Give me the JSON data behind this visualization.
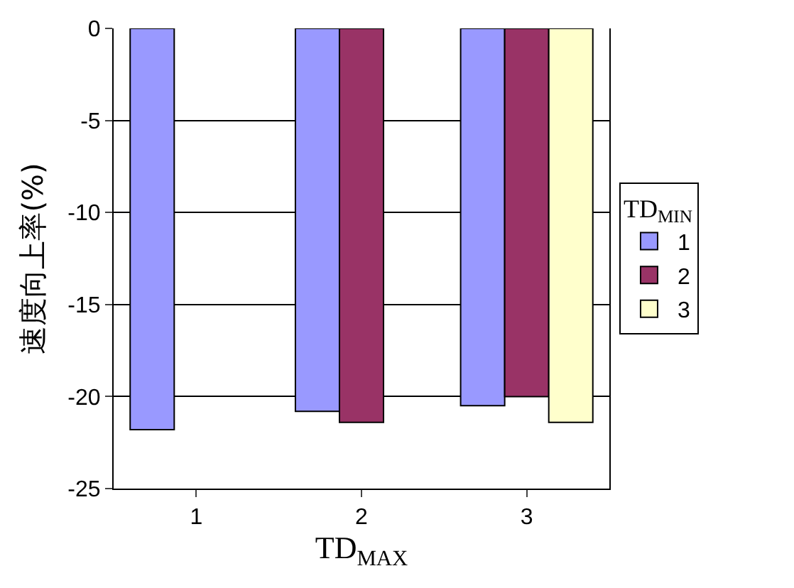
{
  "chart_data": {
    "type": "bar",
    "xlabel": "TD$_{MAX}$",
    "ylabel": "速度向上率(%)",
    "legend_title": "TD$_{MIN}$",
    "categories": [
      "1",
      "2",
      "3"
    ],
    "series": [
      {
        "name": "1",
        "color": "#9999ff",
        "values": [
          -21.8,
          -20.8,
          -20.5
        ]
      },
      {
        "name": "2",
        "color": "#993366",
        "values": [
          null,
          -21.4,
          -20
        ]
      },
      {
        "name": "3",
        "color": "#ffffcc",
        "values": [
          null,
          null,
          -21.4
        ]
      }
    ],
    "ylim": [
      -25,
      0
    ],
    "yticks": [
      -25,
      -20,
      -15,
      -10,
      -5,
      0
    ],
    "grid": "y",
    "legend": "right"
  }
}
